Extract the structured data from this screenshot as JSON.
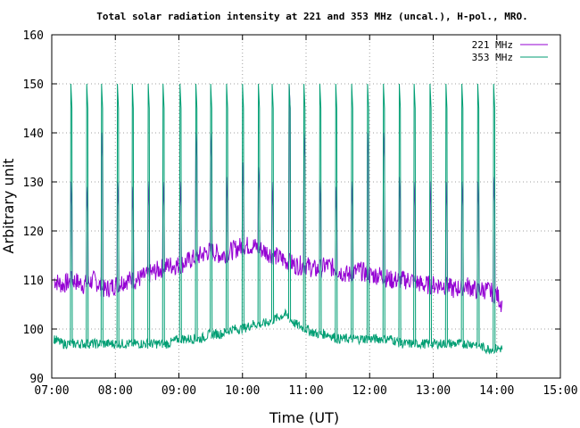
{
  "chart_data": {
    "type": "line",
    "title": "Total solar radiation intensity at 221 and 353 MHz (uncal.), H-pol., MRO.",
    "xlabel": "Time (UT)",
    "ylabel": "Arbitrary unit",
    "xlim": [
      "07:00",
      "15:00"
    ],
    "ylim": [
      90,
      160
    ],
    "x_ticks": [
      "07:00",
      "08:00",
      "09:00",
      "10:00",
      "11:00",
      "12:00",
      "13:00",
      "14:00",
      "15:00"
    ],
    "y_ticks": [
      "90",
      "100",
      "110",
      "120",
      "130",
      "140",
      "150",
      "160"
    ],
    "grid": true,
    "legend_position": "top-right",
    "colors": {
      "221 MHz": "#9400d3",
      "353 MHz": "#009e73"
    },
    "series": [
      {
        "name": "221 MHz",
        "x": [
          "07:02",
          "07:10",
          "07:20",
          "07:30",
          "07:40",
          "07:50",
          "08:00",
          "08:10",
          "08:20",
          "08:30",
          "08:40",
          "08:50",
          "09:00",
          "09:10",
          "09:20",
          "09:30",
          "09:40",
          "09:50",
          "10:00",
          "10:10",
          "10:20",
          "10:30",
          "10:40",
          "10:50",
          "11:00",
          "11:10",
          "11:20",
          "11:30",
          "11:40",
          "11:50",
          "12:00",
          "12:10",
          "12:20",
          "12:30",
          "12:40",
          "12:50",
          "13:00",
          "13:10",
          "13:20",
          "13:30",
          "13:40",
          "13:50",
          "14:00",
          "14:05"
        ],
        "values": [
          110,
          109,
          110,
          109,
          110,
          108,
          109,
          110,
          110,
          111,
          112,
          113,
          113,
          114,
          115,
          116,
          115,
          116,
          117,
          117,
          116,
          115,
          114,
          113,
          113,
          112,
          113,
          112,
          111,
          112,
          111,
          111,
          110,
          110,
          110,
          109,
          109,
          109,
          108,
          109,
          108,
          108,
          107,
          105
        ]
      },
      {
        "name": "353 MHz",
        "x": [
          "07:02",
          "07:10",
          "07:20",
          "07:30",
          "07:40",
          "07:50",
          "08:00",
          "08:10",
          "08:20",
          "08:30",
          "08:40",
          "08:50",
          "09:00",
          "09:10",
          "09:20",
          "09:30",
          "09:40",
          "09:50",
          "10:00",
          "10:10",
          "10:20",
          "10:30",
          "10:40",
          "10:50",
          "11:00",
          "11:10",
          "11:20",
          "11:30",
          "11:40",
          "11:50",
          "12:00",
          "12:10",
          "12:20",
          "12:30",
          "12:40",
          "12:50",
          "13:00",
          "13:10",
          "13:20",
          "13:30",
          "13:40",
          "13:50",
          "14:00",
          "14:05"
        ],
        "values": [
          98,
          97,
          97,
          97,
          97,
          97,
          97,
          97,
          97,
          97,
          97,
          97,
          98,
          98,
          98,
          99,
          99,
          100,
          100,
          101,
          101,
          102,
          103,
          101,
          100,
          99,
          99,
          98,
          98,
          98,
          98,
          98,
          98,
          97,
          97,
          97,
          97,
          97,
          97,
          97,
          97,
          96,
          96,
          96
        ]
      }
    ],
    "calibration_pulses": {
      "times": [
        "07:18",
        "07:33",
        "07:47",
        "08:02",
        "08:16",
        "08:31",
        "08:45",
        "09:01",
        "09:16",
        "09:30",
        "09:45",
        "10:00",
        "10:15",
        "10:28",
        "10:44",
        "10:58",
        "11:13",
        "11:28",
        "11:43",
        "11:58",
        "12:13",
        "12:28",
        "12:42",
        "12:57",
        "13:12",
        "13:27",
        "13:42",
        "13:57"
      ],
      "level_353": 150,
      "level_221": [
        130,
        129,
        140,
        130,
        129,
        130,
        130,
        130,
        140,
        140,
        131,
        134,
        133,
        130,
        150,
        140,
        130,
        129,
        130,
        140,
        140,
        131,
        130,
        130,
        130,
        130,
        130,
        131
      ]
    }
  }
}
